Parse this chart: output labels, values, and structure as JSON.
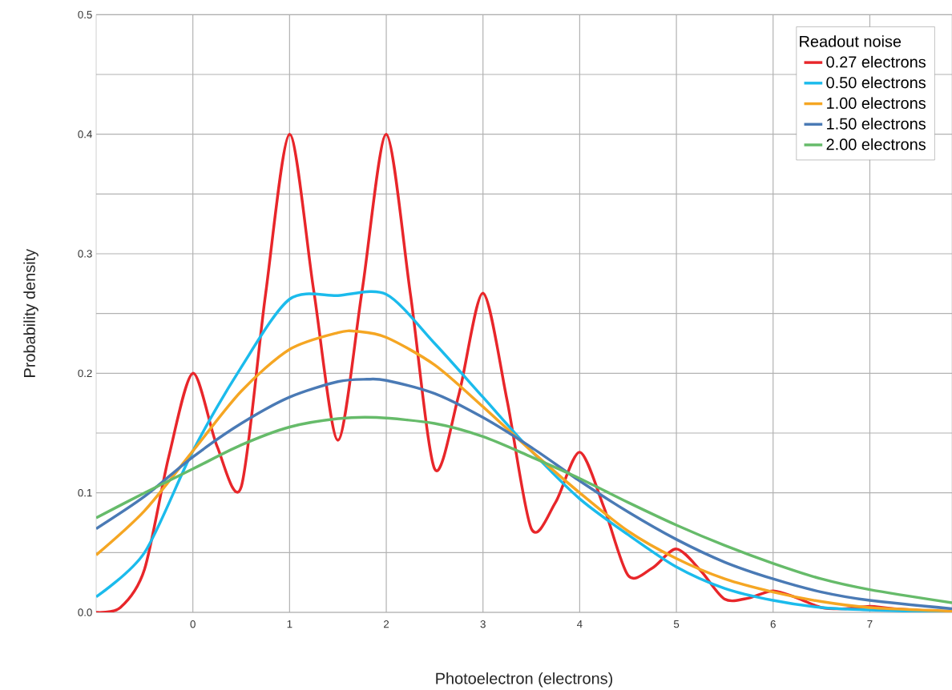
{
  "chart_data": {
    "type": "line",
    "xlabel": "Photoelectron (electrons)",
    "ylabel": "Probability density",
    "legend_title": "Readout noise",
    "xlim": [
      -1,
      7.85
    ],
    "ylim": [
      0,
      0.5
    ],
    "xticks": [
      0,
      1,
      2,
      3,
      4,
      5,
      6,
      7
    ],
    "yticks": [
      {
        "value": 0,
        "label": "0.0"
      },
      {
        "value": 0.05,
        "label": null
      },
      {
        "value": 0.1,
        "label": "0.1"
      },
      {
        "value": 0.15,
        "label": null
      },
      {
        "value": 0.2,
        "label": "0.2"
      },
      {
        "value": 0.25,
        "label": null
      },
      {
        "value": 0.3,
        "label": "0.3"
      },
      {
        "value": 0.35,
        "label": null
      },
      {
        "value": 0.4,
        "label": "0.4"
      },
      {
        "value": 0.45,
        "label": null
      },
      {
        "value": 0.5,
        "label": "0.5"
      }
    ],
    "grid": true,
    "legend": "top right",
    "marker": "none",
    "line_style": "solid",
    "series": [
      {
        "name": "0.27 electrons",
        "color": "#e8262a",
        "x": [
          -1,
          -0.75,
          -0.5,
          -0.25,
          0,
          0.25,
          0.5,
          0.75,
          1,
          1.25,
          1.5,
          1.75,
          2,
          2.25,
          2.5,
          2.75,
          3,
          3.25,
          3.5,
          3.75,
          4,
          4.25,
          4.5,
          4.75,
          5,
          5.25,
          5.5,
          5.75,
          6,
          6.25,
          6.5,
          6.75,
          7,
          7.25,
          7.5,
          7.85
        ],
        "values": [
          0,
          0.004,
          0.036,
          0.13,
          0.2,
          0.139,
          0.105,
          0.265,
          0.4,
          0.269,
          0.144,
          0.269,
          0.4,
          0.266,
          0.12,
          0.182,
          0.267,
          0.177,
          0.07,
          0.092,
          0.134,
          0.088,
          0.031,
          0.037,
          0.053,
          0.035,
          0.011,
          0.012,
          0.018,
          0.012,
          0.004,
          0.003,
          0.005,
          0.003,
          null,
          0
        ]
      },
      {
        "name": "0.50 electrons",
        "color": "#1bbbec",
        "x": [
          -1,
          -0.5,
          0,
          0.5,
          1,
          1.5,
          2,
          2.5,
          3,
          3.5,
          4,
          4.5,
          5,
          5.5,
          6,
          6.5,
          7,
          7.85
        ],
        "values": [
          0.013,
          0.05,
          0.135,
          0.205,
          0.262,
          0.265,
          0.266,
          0.225,
          0.18,
          0.135,
          0.095,
          0.065,
          0.038,
          0.02,
          0.01,
          0.004,
          0.002,
          0
        ]
      },
      {
        "name": "1.00 electrons",
        "color": "#f5a623",
        "x": [
          -1,
          -0.5,
          0,
          0.5,
          1,
          1.5,
          1.7,
          2,
          2.5,
          3,
          3.5,
          4,
          4.5,
          5,
          5.5,
          6,
          6.5,
          7,
          7.85
        ],
        "values": [
          0.048,
          0.085,
          0.135,
          0.185,
          0.22,
          0.234,
          0.235,
          0.23,
          0.207,
          0.172,
          0.135,
          0.1,
          0.068,
          0.045,
          0.028,
          0.017,
          0.009,
          0.004,
          0.001
        ]
      },
      {
        "name": "1.50 electrons",
        "color": "#4a7ab5",
        "x": [
          -1,
          -0.5,
          0,
          0.5,
          1,
          1.5,
          1.8,
          2,
          2.5,
          3,
          3.5,
          4,
          4.5,
          5,
          5.5,
          6,
          6.5,
          7,
          7.85
        ],
        "values": [
          0.07,
          0.097,
          0.13,
          0.158,
          0.18,
          0.193,
          0.195,
          0.194,
          0.183,
          0.163,
          0.138,
          0.11,
          0.084,
          0.061,
          0.042,
          0.028,
          0.017,
          0.01,
          0.003
        ]
      },
      {
        "name": "2.00 electrons",
        "color": "#66bb6a",
        "x": [
          -1,
          -0.5,
          0,
          0.5,
          1,
          1.5,
          1.9,
          2.5,
          3,
          3.5,
          4,
          4.5,
          5,
          5.5,
          6,
          6.5,
          7,
          7.85
        ],
        "values": [
          0.079,
          0.1,
          0.12,
          0.14,
          0.155,
          0.162,
          0.163,
          0.158,
          0.147,
          0.13,
          0.112,
          0.092,
          0.073,
          0.056,
          0.041,
          0.028,
          0.019,
          0.008
        ]
      }
    ]
  }
}
